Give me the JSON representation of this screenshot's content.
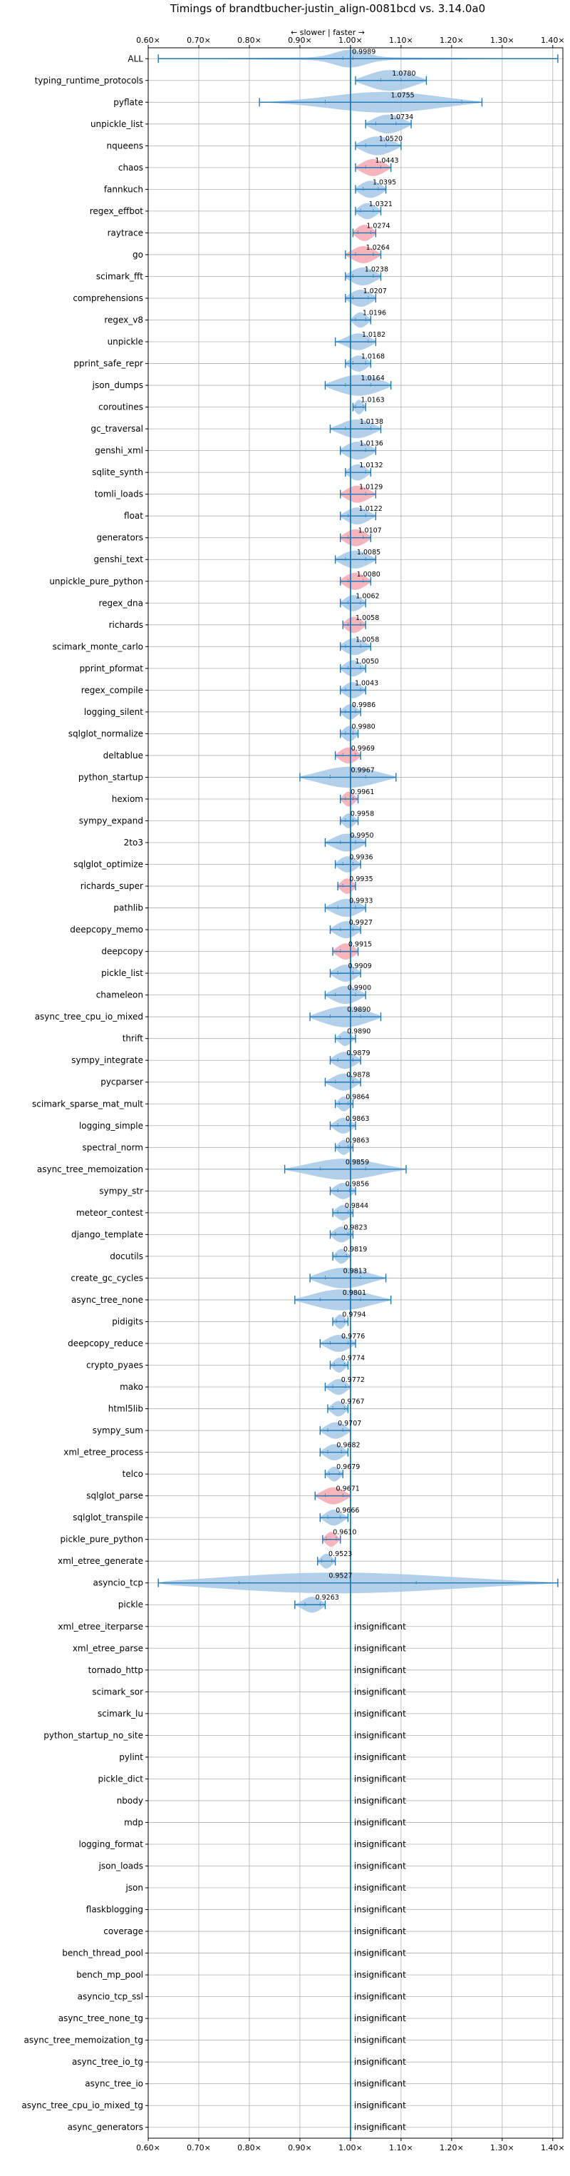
{
  "chart_data": {
    "type": "violin",
    "title": "Timings of brandtbucher-justin_align-0081bcd vs. 3.14.0a0",
    "subtitle": "← slower | faster →",
    "xlim": [
      0.6,
      1.42
    ],
    "x_ticks": [
      0.6,
      0.7,
      0.8,
      0.9,
      1.0,
      1.1,
      1.2,
      1.3,
      1.4
    ],
    "x_tick_labels": [
      "0.60×",
      "0.70×",
      "0.80×",
      "0.90×",
      "1.00×",
      "1.10×",
      "1.20×",
      "1.30×",
      "1.40×"
    ],
    "reference_line": 1.0,
    "grid": true,
    "colors": {
      "normal": "#a6c8e6",
      "highlight": "#f4a8b0",
      "line": "#1f77b4",
      "grid": "#b0b0b0"
    },
    "insignificant_text": "insignificant",
    "benchmarks": [
      {
        "name": "ALL",
        "value": 0.9989,
        "label": "0.9989",
        "min": 0.62,
        "max": 1.41,
        "q1": 0.985,
        "q3": 1.005,
        "spread": 0.03,
        "color": "normal"
      },
      {
        "name": "typing_runtime_protocols",
        "value": 1.078,
        "label": "1.0780",
        "min": 1.01,
        "max": 1.15,
        "q1": 1.06,
        "q3": 1.1,
        "spread": 0.05,
        "color": "normal"
      },
      {
        "name": "pyflate",
        "value": 1.0755,
        "label": "1.0755",
        "min": 0.82,
        "max": 1.26,
        "q1": 0.95,
        "q3": 1.22,
        "spread": 0.11,
        "color": "normal"
      },
      {
        "name": "unpickle_list",
        "value": 1.0734,
        "label": "1.0734",
        "min": 1.03,
        "max": 1.12,
        "q1": 1.05,
        "q3": 1.09,
        "spread": 0.035,
        "color": "normal"
      },
      {
        "name": "nqueens",
        "value": 1.052,
        "label": "1.0520",
        "min": 1.01,
        "max": 1.1,
        "q1": 1.03,
        "q3": 1.07,
        "spread": 0.035,
        "color": "normal"
      },
      {
        "name": "chaos",
        "value": 1.0443,
        "label": "1.0443",
        "min": 1.01,
        "max": 1.08,
        "q1": 1.03,
        "q3": 1.06,
        "spread": 0.025,
        "color": "highlight"
      },
      {
        "name": "fannkuch",
        "value": 1.0395,
        "label": "1.0395",
        "min": 1.01,
        "max": 1.07,
        "q1": 1.025,
        "q3": 1.055,
        "spread": 0.025,
        "color": "normal"
      },
      {
        "name": "regex_effbot",
        "value": 1.0321,
        "label": "1.0321",
        "min": 1.01,
        "max": 1.06,
        "q1": 1.02,
        "q3": 1.045,
        "spread": 0.02,
        "color": "normal"
      },
      {
        "name": "raytrace",
        "value": 1.0274,
        "label": "1.0274",
        "min": 1.005,
        "max": 1.05,
        "q1": 1.015,
        "q3": 1.04,
        "spread": 0.02,
        "color": "highlight"
      },
      {
        "name": "go",
        "value": 1.0264,
        "label": "1.0264",
        "min": 0.99,
        "max": 1.06,
        "q1": 1.01,
        "q3": 1.045,
        "spread": 0.025,
        "color": "highlight"
      },
      {
        "name": "scimark_fft",
        "value": 1.0238,
        "label": "1.0238",
        "min": 0.99,
        "max": 1.06,
        "q1": 1.005,
        "q3": 1.045,
        "spread": 0.03,
        "color": "normal"
      },
      {
        "name": "comprehensions",
        "value": 1.0207,
        "label": "1.0207",
        "min": 0.99,
        "max": 1.05,
        "q1": 1.005,
        "q3": 1.035,
        "spread": 0.025,
        "color": "normal"
      },
      {
        "name": "regex_v8",
        "value": 1.0196,
        "label": "1.0196",
        "min": 1.0,
        "max": 1.04,
        "q1": 1.01,
        "q3": 1.03,
        "spread": 0.015,
        "color": "normal"
      },
      {
        "name": "unpickle",
        "value": 1.0182,
        "label": "1.0182",
        "min": 0.97,
        "max": 1.05,
        "q1": 1.0,
        "q3": 1.035,
        "spread": 0.025,
        "color": "normal"
      },
      {
        "name": "pprint_safe_repr",
        "value": 1.0168,
        "label": "1.0168",
        "min": 0.99,
        "max": 1.04,
        "q1": 1.005,
        "q3": 1.03,
        "spread": 0.02,
        "color": "normal"
      },
      {
        "name": "json_dumps",
        "value": 1.0164,
        "label": "1.0164",
        "min": 0.95,
        "max": 1.08,
        "q1": 0.99,
        "q3": 1.04,
        "spread": 0.05,
        "color": "normal"
      },
      {
        "name": "coroutines",
        "value": 1.0163,
        "label": "1.0163",
        "min": 1.005,
        "max": 1.03,
        "q1": 1.01,
        "q3": 1.025,
        "spread": 0.01,
        "color": "normal"
      },
      {
        "name": "gc_traversal",
        "value": 1.0138,
        "label": "1.0138",
        "min": 0.96,
        "max": 1.06,
        "q1": 0.99,
        "q3": 1.04,
        "spread": 0.035,
        "color": "normal"
      },
      {
        "name": "genshi_xml",
        "value": 1.0136,
        "label": "1.0136",
        "min": 0.98,
        "max": 1.05,
        "q1": 1.0,
        "q3": 1.03,
        "spread": 0.03,
        "color": "normal"
      },
      {
        "name": "sqlite_synth",
        "value": 1.0132,
        "label": "1.0132",
        "min": 0.99,
        "max": 1.04,
        "q1": 1.0,
        "q3": 1.03,
        "spread": 0.02,
        "color": "normal"
      },
      {
        "name": "tomli_loads",
        "value": 1.0129,
        "label": "1.0129",
        "min": 0.98,
        "max": 1.05,
        "q1": 1.0,
        "q3": 1.03,
        "spread": 0.025,
        "color": "highlight"
      },
      {
        "name": "float",
        "value": 1.0122,
        "label": "1.0122",
        "min": 0.98,
        "max": 1.05,
        "q1": 0.995,
        "q3": 1.03,
        "spread": 0.025,
        "color": "normal"
      },
      {
        "name": "generators",
        "value": 1.0107,
        "label": "1.0107",
        "min": 0.98,
        "max": 1.04,
        "q1": 0.995,
        "q3": 1.025,
        "spread": 0.025,
        "color": "highlight"
      },
      {
        "name": "genshi_text",
        "value": 1.0085,
        "label": "1.0085",
        "min": 0.97,
        "max": 1.05,
        "q1": 0.99,
        "q3": 1.03,
        "spread": 0.03,
        "color": "normal"
      },
      {
        "name": "unpickle_pure_python",
        "value": 1.008,
        "label": "1.0080",
        "min": 0.98,
        "max": 1.04,
        "q1": 0.995,
        "q3": 1.025,
        "spread": 0.025,
        "color": "highlight"
      },
      {
        "name": "regex_dna",
        "value": 1.0062,
        "label": "1.0062",
        "min": 0.98,
        "max": 1.03,
        "q1": 0.995,
        "q3": 1.02,
        "spread": 0.02,
        "color": "normal"
      },
      {
        "name": "richards",
        "value": 1.0058,
        "label": "1.0058",
        "min": 0.985,
        "max": 1.03,
        "q1": 0.995,
        "q3": 1.02,
        "spread": 0.02,
        "color": "highlight"
      },
      {
        "name": "scimark_monte_carlo",
        "value": 1.0058,
        "label": "1.0058",
        "min": 0.98,
        "max": 1.04,
        "q1": 0.99,
        "q3": 1.02,
        "spread": 0.025,
        "color": "normal"
      },
      {
        "name": "pprint_pformat",
        "value": 1.005,
        "label": "1.0050",
        "min": 0.98,
        "max": 1.03,
        "q1": 0.995,
        "q3": 1.02,
        "spread": 0.02,
        "color": "normal"
      },
      {
        "name": "regex_compile",
        "value": 1.0043,
        "label": "1.0043",
        "min": 0.98,
        "max": 1.03,
        "q1": 0.99,
        "q3": 1.02,
        "spread": 0.02,
        "color": "normal"
      },
      {
        "name": "logging_silent",
        "value": 0.9986,
        "label": "0.9986",
        "min": 0.98,
        "max": 1.02,
        "q1": 0.99,
        "q3": 1.01,
        "spread": 0.015,
        "color": "normal"
      },
      {
        "name": "sqlglot_normalize",
        "value": 0.998,
        "label": "0.9980",
        "min": 0.98,
        "max": 1.015,
        "q1": 0.99,
        "q3": 1.005,
        "spread": 0.015,
        "color": "normal"
      },
      {
        "name": "deltablue",
        "value": 0.9969,
        "label": "0.9969",
        "min": 0.97,
        "max": 1.02,
        "q1": 0.985,
        "q3": 1.01,
        "spread": 0.02,
        "color": "highlight"
      },
      {
        "name": "python_startup",
        "value": 0.9967,
        "label": "0.9967",
        "min": 0.9,
        "max": 1.09,
        "q1": 0.96,
        "q3": 1.03,
        "spread": 0.06,
        "color": "normal"
      },
      {
        "name": "hexiom",
        "value": 0.9961,
        "label": "0.9961",
        "min": 0.98,
        "max": 1.015,
        "q1": 0.99,
        "q3": 1.005,
        "spread": 0.012,
        "color": "highlight"
      },
      {
        "name": "sympy_expand",
        "value": 0.9958,
        "label": "0.9958",
        "min": 0.98,
        "max": 1.015,
        "q1": 0.99,
        "q3": 1.005,
        "spread": 0.012,
        "color": "normal"
      },
      {
        "name": "2to3",
        "value": 0.995,
        "label": "0.9950",
        "min": 0.95,
        "max": 1.03,
        "q1": 0.98,
        "q3": 1.01,
        "spread": 0.03,
        "color": "normal"
      },
      {
        "name": "sqlglot_optimize",
        "value": 0.9936,
        "label": "0.9936",
        "min": 0.97,
        "max": 1.02,
        "q1": 0.985,
        "q3": 1.005,
        "spread": 0.02,
        "color": "normal"
      },
      {
        "name": "richards_super",
        "value": 0.9935,
        "label": "0.9935",
        "min": 0.975,
        "max": 1.01,
        "q1": 0.985,
        "q3": 1.0,
        "spread": 0.015,
        "color": "highlight"
      },
      {
        "name": "pathlib",
        "value": 0.9933,
        "label": "0.9933",
        "min": 0.95,
        "max": 1.03,
        "q1": 0.975,
        "q3": 1.01,
        "spread": 0.03,
        "color": "normal"
      },
      {
        "name": "deepcopy_memo",
        "value": 0.9927,
        "label": "0.9927",
        "min": 0.96,
        "max": 1.02,
        "q1": 0.98,
        "q3": 1.005,
        "spread": 0.025,
        "color": "normal"
      },
      {
        "name": "deepcopy",
        "value": 0.9915,
        "label": "0.9915",
        "min": 0.965,
        "max": 1.015,
        "q1": 0.98,
        "q3": 1.0,
        "spread": 0.02,
        "color": "highlight"
      },
      {
        "name": "pickle_list",
        "value": 0.9909,
        "label": "0.9909",
        "min": 0.96,
        "max": 1.02,
        "q1": 0.975,
        "q3": 1.005,
        "spread": 0.025,
        "color": "normal"
      },
      {
        "name": "chameleon",
        "value": 0.99,
        "label": "0.9900",
        "min": 0.95,
        "max": 1.03,
        "q1": 0.97,
        "q3": 1.01,
        "spread": 0.03,
        "color": "normal"
      },
      {
        "name": "async_tree_cpu_io_mixed",
        "value": 0.989,
        "label": "0.9890",
        "min": 0.92,
        "max": 1.06,
        "q1": 0.96,
        "q3": 1.02,
        "spread": 0.05,
        "color": "normal"
      },
      {
        "name": "thrift",
        "value": 0.989,
        "label": "0.9890",
        "min": 0.97,
        "max": 1.01,
        "q1": 0.98,
        "q3": 1.0,
        "spread": 0.012,
        "color": "normal"
      },
      {
        "name": "sympy_integrate",
        "value": 0.9879,
        "label": "0.9879",
        "min": 0.96,
        "max": 1.02,
        "q1": 0.975,
        "q3": 1.005,
        "spread": 0.025,
        "color": "normal"
      },
      {
        "name": "pycparser",
        "value": 0.9878,
        "label": "0.9878",
        "min": 0.95,
        "max": 1.02,
        "q1": 0.97,
        "q3": 1.005,
        "spread": 0.025,
        "color": "normal"
      },
      {
        "name": "scimark_sparse_mat_mult",
        "value": 0.9864,
        "label": "0.9864",
        "min": 0.97,
        "max": 1.005,
        "q1": 0.978,
        "q3": 0.995,
        "spread": 0.012,
        "color": "normal"
      },
      {
        "name": "logging_simple",
        "value": 0.9863,
        "label": "0.9863",
        "min": 0.96,
        "max": 1.01,
        "q1": 0.975,
        "q3": 0.998,
        "spread": 0.018,
        "color": "normal"
      },
      {
        "name": "spectral_norm",
        "value": 0.9863,
        "label": "0.9863",
        "min": 0.97,
        "max": 1.005,
        "q1": 0.978,
        "q3": 0.995,
        "spread": 0.012,
        "color": "normal"
      },
      {
        "name": "async_tree_memoization",
        "value": 0.9859,
        "label": "0.9859",
        "min": 0.87,
        "max": 1.11,
        "q1": 0.94,
        "q3": 1.03,
        "spread": 0.07,
        "color": "normal"
      },
      {
        "name": "sympy_str",
        "value": 0.9856,
        "label": "0.9856",
        "min": 0.96,
        "max": 1.01,
        "q1": 0.975,
        "q3": 0.998,
        "spread": 0.02,
        "color": "normal"
      },
      {
        "name": "meteor_contest",
        "value": 0.9844,
        "label": "0.9844",
        "min": 0.965,
        "max": 1.005,
        "q1": 0.975,
        "q3": 0.995,
        "spread": 0.015,
        "color": "normal"
      },
      {
        "name": "django_template",
        "value": 0.9823,
        "label": "0.9823",
        "min": 0.96,
        "max": 1.005,
        "q1": 0.97,
        "q3": 0.995,
        "spread": 0.018,
        "color": "normal"
      },
      {
        "name": "docutils",
        "value": 0.9819,
        "label": "0.9819",
        "min": 0.965,
        "max": 1.0,
        "q1": 0.972,
        "q3": 0.992,
        "spread": 0.012,
        "color": "normal"
      },
      {
        "name": "create_gc_cycles",
        "value": 0.9813,
        "label": "0.9813",
        "min": 0.92,
        "max": 1.07,
        "q1": 0.95,
        "q3": 1.02,
        "spread": 0.05,
        "color": "normal"
      },
      {
        "name": "async_tree_none",
        "value": 0.9801,
        "label": "0.9801",
        "min": 0.89,
        "max": 1.08,
        "q1": 0.94,
        "q3": 1.02,
        "spread": 0.06,
        "color": "normal"
      },
      {
        "name": "pidigits",
        "value": 0.9794,
        "label": "0.9794",
        "min": 0.965,
        "max": 0.995,
        "q1": 0.972,
        "q3": 0.988,
        "spread": 0.01,
        "color": "normal"
      },
      {
        "name": "deepcopy_reduce",
        "value": 0.9776,
        "label": "0.9776",
        "min": 0.94,
        "max": 1.01,
        "q1": 0.96,
        "q3": 0.995,
        "spread": 0.025,
        "color": "normal"
      },
      {
        "name": "crypto_pyaes",
        "value": 0.9774,
        "label": "0.9774",
        "min": 0.96,
        "max": 0.995,
        "q1": 0.968,
        "q3": 0.988,
        "spread": 0.012,
        "color": "normal"
      },
      {
        "name": "mako",
        "value": 0.9772,
        "label": "0.9772",
        "min": 0.95,
        "max": 1.0,
        "q1": 0.965,
        "q3": 0.99,
        "spread": 0.018,
        "color": "normal"
      },
      {
        "name": "html5lib",
        "value": 0.9767,
        "label": "0.9767",
        "min": 0.955,
        "max": 0.995,
        "q1": 0.965,
        "q3": 0.988,
        "spread": 0.015,
        "color": "normal"
      },
      {
        "name": "sympy_sum",
        "value": 0.9707,
        "label": "0.9707",
        "min": 0.94,
        "max": 1.0,
        "q1": 0.955,
        "q3": 0.985,
        "spread": 0.022,
        "color": "normal"
      },
      {
        "name": "xml_etree_process",
        "value": 0.9682,
        "label": "0.9682",
        "min": 0.94,
        "max": 0.995,
        "q1": 0.955,
        "q3": 0.982,
        "spread": 0.02,
        "color": "normal"
      },
      {
        "name": "telco",
        "value": 0.9679,
        "label": "0.9679",
        "min": 0.95,
        "max": 0.985,
        "q1": 0.958,
        "q3": 0.978,
        "spread": 0.012,
        "color": "normal"
      },
      {
        "name": "sqlglot_parse",
        "value": 0.9671,
        "label": "0.9671",
        "min": 0.93,
        "max": 1.0,
        "q1": 0.95,
        "q3": 0.985,
        "spread": 0.025,
        "color": "highlight"
      },
      {
        "name": "sqlglot_transpile",
        "value": 0.9666,
        "label": "0.9666",
        "min": 0.94,
        "max": 0.995,
        "q1": 0.955,
        "q3": 0.98,
        "spread": 0.018,
        "color": "normal"
      },
      {
        "name": "pickle_pure_python",
        "value": 0.961,
        "label": "0.9610",
        "min": 0.945,
        "max": 0.98,
        "q1": 0.952,
        "q3": 0.972,
        "spread": 0.012,
        "color": "highlight"
      },
      {
        "name": "xml_etree_generate",
        "value": 0.9523,
        "label": "0.9523",
        "min": 0.935,
        "max": 0.97,
        "q1": 0.943,
        "q3": 0.963,
        "spread": 0.012,
        "color": "normal"
      },
      {
        "name": "asyncio_tcp",
        "value": 0.9527,
        "label": "0.9527",
        "min": 0.62,
        "max": 1.41,
        "q1": 0.78,
        "q3": 1.13,
        "spread": 0.25,
        "color": "normal"
      },
      {
        "name": "pickle",
        "value": 0.9263,
        "label": "0.9263",
        "min": 0.89,
        "max": 0.95,
        "q1": 0.91,
        "q3": 0.94,
        "spread": 0.02,
        "color": "normal"
      },
      {
        "name": "xml_etree_iterparse",
        "insignificant": true
      },
      {
        "name": "xml_etree_parse",
        "insignificant": true
      },
      {
        "name": "tornado_http",
        "insignificant": true
      },
      {
        "name": "scimark_sor",
        "insignificant": true
      },
      {
        "name": "scimark_lu",
        "insignificant": true
      },
      {
        "name": "python_startup_no_site",
        "insignificant": true
      },
      {
        "name": "pylint",
        "insignificant": true
      },
      {
        "name": "pickle_dict",
        "insignificant": true
      },
      {
        "name": "nbody",
        "insignificant": true
      },
      {
        "name": "mdp",
        "insignificant": true
      },
      {
        "name": "logging_format",
        "insignificant": true
      },
      {
        "name": "json_loads",
        "insignificant": true
      },
      {
        "name": "json",
        "insignificant": true
      },
      {
        "name": "flaskblogging",
        "insignificant": true
      },
      {
        "name": "coverage",
        "insignificant": true
      },
      {
        "name": "bench_thread_pool",
        "insignificant": true
      },
      {
        "name": "bench_mp_pool",
        "insignificant": true
      },
      {
        "name": "asyncio_tcp_ssl",
        "insignificant": true
      },
      {
        "name": "async_tree_none_tg",
        "insignificant": true
      },
      {
        "name": "async_tree_memoization_tg",
        "insignificant": true
      },
      {
        "name": "async_tree_io_tg",
        "insignificant": true
      },
      {
        "name": "async_tree_io",
        "insignificant": true
      },
      {
        "name": "async_tree_cpu_io_mixed_tg",
        "insignificant": true
      },
      {
        "name": "async_generators",
        "insignificant": true
      }
    ]
  }
}
